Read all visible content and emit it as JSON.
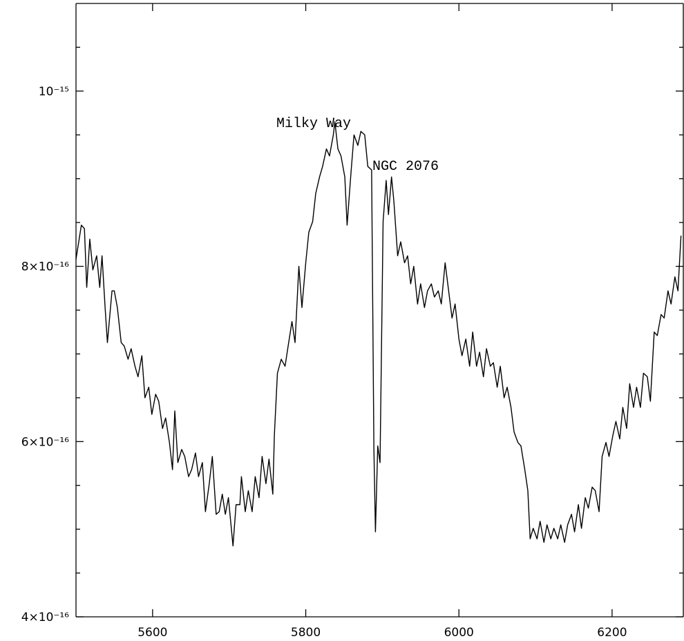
{
  "chart_data": {
    "type": "line",
    "annotations": [
      "Milky Way",
      "NGC 2076"
    ],
    "xlim": [
      5500,
      6293
    ],
    "xticks": [
      5600,
      5800,
      6000,
      6200
    ],
    "ylim": [
      4e-16,
      1.1e-15
    ],
    "yticks": [
      {
        "value": 4e-16,
        "label": "4×10⁻¹⁶"
      },
      {
        "value": 6e-16,
        "label": "6×10⁻¹⁶"
      },
      {
        "value": 8e-16,
        "label": "8×10⁻¹⁶"
      },
      {
        "value": 1e-15,
        "label": "10⁻¹⁵"
      }
    ],
    "yminorticks": [
      4.5e-16,
      5e-16,
      5.5e-16,
      6.5e-16,
      7e-16,
      7.5e-16,
      8.5e-16,
      9e-16,
      9.5e-16,
      1.05e-15
    ],
    "series": [
      {
        "color": "#000000",
        "x": [
          5500,
          5507,
          5511,
          5514,
          5518,
          5522,
          5527,
          5531,
          5534,
          5538,
          5541,
          5547,
          5550,
          5554,
          5559,
          5563,
          5568,
          5572,
          5577,
          5581,
          5586,
          5590,
          5595,
          5599,
          5604,
          5608,
          5613,
          5617,
          5622,
          5626,
          5629,
          5633,
          5638,
          5642,
          5647,
          5651,
          5656,
          5660,
          5665,
          5669,
          5674,
          5678,
          5683,
          5687,
          5691,
          5695,
          5699,
          5705,
          5709,
          5714,
          5716,
          5721,
          5725,
          5730,
          5734,
          5739,
          5743,
          5748,
          5752,
          5757,
          5759,
          5763,
          5768,
          5773,
          5777,
          5782,
          5786,
          5791,
          5795,
          5800,
          5804,
          5809,
          5813,
          5818,
          5822,
          5827,
          5831,
          5836,
          5838,
          5842,
          5846,
          5851,
          5854,
          5859,
          5863,
          5868,
          5872,
          5877,
          5881,
          5886,
          5889,
          5891,
          5894,
          5897,
          5901,
          5905,
          5908,
          5912,
          5915,
          5920,
          5924,
          5929,
          5933,
          5937,
          5941,
          5946,
          5950,
          5955,
          5959,
          5964,
          5968,
          5973,
          5977,
          5982,
          5986,
          5991,
          5995,
          6000,
          6004,
          6009,
          6014,
          6018,
          6023,
          6027,
          6032,
          6036,
          6041,
          6045,
          6050,
          6054,
          6059,
          6063,
          6068,
          6072,
          6077,
          6081,
          6086,
          6090,
          6093,
          6097,
          6102,
          6106,
          6111,
          6115,
          6120,
          6124,
          6129,
          6133,
          6138,
          6142,
          6147,
          6151,
          6156,
          6160,
          6165,
          6169,
          6174,
          6178,
          6183,
          6187,
          6192,
          6196,
          6201,
          6205,
          6210,
          6214,
          6219,
          6223,
          6228,
          6232,
          6237,
          6241,
          6246,
          6250,
          6255,
          6259,
          6264,
          6268,
          6273,
          6277,
          6282,
          6286,
          6290
        ],
        "values": [
          8.08e-16,
          8.47e-16,
          8.43e-16,
          7.76e-16,
          8.31e-16,
          7.96e-16,
          8.12e-16,
          7.76e-16,
          8.12e-16,
          7.53e-16,
          7.13e-16,
          7.72e-16,
          7.72e-16,
          7.53e-16,
          7.13e-16,
          7.09e-16,
          6.94e-16,
          7.06e-16,
          6.86e-16,
          6.74e-16,
          6.98e-16,
          6.5e-16,
          6.62e-16,
          6.31e-16,
          6.54e-16,
          6.46e-16,
          6.15e-16,
          6.27e-16,
          5.99e-16,
          5.68e-16,
          6.35e-16,
          5.76e-16,
          5.91e-16,
          5.83e-16,
          5.6e-16,
          5.68e-16,
          5.87e-16,
          5.6e-16,
          5.76e-16,
          5.2e-16,
          5.52e-16,
          5.83e-16,
          5.17e-16,
          5.2e-16,
          5.4e-16,
          5.17e-16,
          5.36e-16,
          4.81e-16,
          5.28e-16,
          5.28e-16,
          5.6e-16,
          5.2e-16,
          5.44e-16,
          5.2e-16,
          5.6e-16,
          5.36e-16,
          5.83e-16,
          5.52e-16,
          5.8e-16,
          5.4e-16,
          6.07e-16,
          6.78e-16,
          6.94e-16,
          6.86e-16,
          7.09e-16,
          7.37e-16,
          7.13e-16,
          8e-16,
          7.53e-16,
          8.04e-16,
          8.39e-16,
          8.51e-16,
          8.83e-16,
          9.02e-16,
          9.14e-16,
          9.34e-16,
          9.26e-16,
          9.5e-16,
          9.65e-16,
          9.34e-16,
          9.26e-16,
          9.02e-16,
          8.47e-16,
          9.06e-16,
          9.5e-16,
          9.38e-16,
          9.54e-16,
          9.5e-16,
          9.14e-16,
          9.1e-16,
          5.91e-16,
          4.97e-16,
          5.95e-16,
          5.76e-16,
          8.51e-16,
          8.98e-16,
          8.59e-16,
          9.02e-16,
          8.75e-16,
          8.12e-16,
          8.28e-16,
          8.04e-16,
          8.12e-16,
          7.8e-16,
          8e-16,
          7.57e-16,
          7.8e-16,
          7.53e-16,
          7.72e-16,
          7.8e-16,
          7.65e-16,
          7.72e-16,
          7.57e-16,
          8.04e-16,
          7.76e-16,
          7.41e-16,
          7.57e-16,
          7.17e-16,
          6.98e-16,
          7.17e-16,
          6.86e-16,
          7.25e-16,
          6.86e-16,
          7.02e-16,
          6.74e-16,
          7.06e-16,
          6.86e-16,
          6.9e-16,
          6.62e-16,
          6.86e-16,
          6.5e-16,
          6.62e-16,
          6.39e-16,
          6.11e-16,
          5.99e-16,
          5.95e-16,
          5.68e-16,
          5.44e-16,
          4.89e-16,
          5.01e-16,
          4.89e-16,
          5.09e-16,
          4.85e-16,
          5.05e-16,
          4.89e-16,
          5.01e-16,
          4.89e-16,
          5.05e-16,
          4.85e-16,
          5.05e-16,
          5.17e-16,
          4.97e-16,
          5.28e-16,
          5.01e-16,
          5.36e-16,
          5.24e-16,
          5.48e-16,
          5.44e-16,
          5.2e-16,
          5.83e-16,
          5.99e-16,
          5.83e-16,
          6.07e-16,
          6.23e-16,
          6.03e-16,
          6.39e-16,
          6.15e-16,
          6.66e-16,
          6.39e-16,
          6.62e-16,
          6.39e-16,
          6.78e-16,
          6.74e-16,
          6.46e-16,
          7.25e-16,
          7.21e-16,
          7.45e-16,
          7.41e-16,
          7.72e-16,
          7.57e-16,
          7.88e-16,
          7.72e-16,
          8.35e-16
        ]
      }
    ]
  }
}
